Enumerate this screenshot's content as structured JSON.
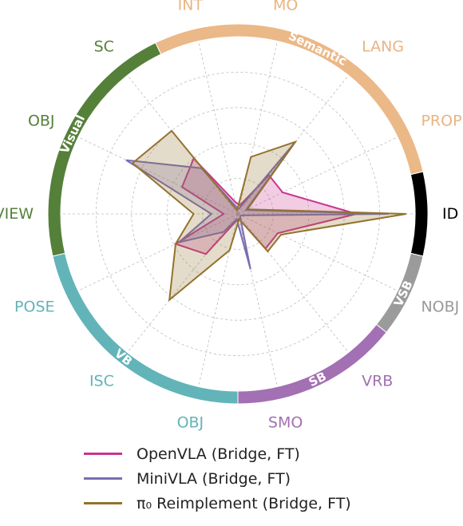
{
  "chart_data": {
    "type": "radar",
    "axes": [
      {
        "label": "ID",
        "color": "#000000"
      },
      {
        "label": "PROP",
        "color": "#E8B583"
      },
      {
        "label": "LANG",
        "color": "#E8B583"
      },
      {
        "label": "MO",
        "color": "#E8B583"
      },
      {
        "label": "INT",
        "color": "#E8B583"
      },
      {
        "label": "SC",
        "color": "#55803A"
      },
      {
        "label": "OBJ",
        "color": "#55803A"
      },
      {
        "label": "VIEW",
        "color": "#55803A"
      },
      {
        "label": "POSE",
        "color": "#62B4B8"
      },
      {
        "label": "ISC",
        "color": "#62B4B8"
      },
      {
        "label": "OBJ",
        "color": "#62B4B8"
      },
      {
        "label": "SMO",
        "color": "#A370B3"
      },
      {
        "label": "VRB",
        "color": "#A370B3"
      },
      {
        "label": "NOBJ",
        "color": "#999999"
      }
    ],
    "groups": [
      {
        "label": "Semantic",
        "color": "#EBB887",
        "axes": [
          "PROP",
          "LANG",
          "MO",
          "INT"
        ]
      },
      {
        "label": "Visual",
        "color": "#55803A",
        "axes": [
          "SC",
          "OBJ",
          "VIEW"
        ]
      },
      {
        "label": "VB",
        "color": "#62B4B8",
        "axes": [
          "POSE",
          "ISC",
          "OBJ"
        ]
      },
      {
        "label": "SB",
        "color": "#A370B3",
        "axes": [
          "SMO",
          "VRB"
        ]
      },
      {
        "label": "VSB",
        "color": "#9B9B9B",
        "axes": [
          "NOBJ"
        ]
      },
      {
        "label": "",
        "color": "#000000",
        "axes": [
          "ID"
        ]
      }
    ],
    "range": [
      0,
      1
    ],
    "grid": true,
    "legend_position": "bottom",
    "series": [
      {
        "name": "OpenVLA (Bridge, FT)",
        "color": "#C9358F",
        "values": [
          0.67,
          0.28,
          0.28,
          0.05,
          0.07,
          0.4,
          0.35,
          0.08,
          0.39,
          0.29,
          0.04,
          0.03,
          0.25,
          0.25
        ]
      },
      {
        "name": "MiniVLA (Bridge, FT)",
        "color": "#7B6CB3",
        "values": [
          0.85,
          0.05,
          0.52,
          0.03,
          0.04,
          0.33,
          0.7,
          0.15,
          0.37,
          0.13,
          0.03,
          0.32,
          0.02,
          0.02
        ]
      },
      {
        "name": "π₀ Reimplement (Bridge, FT)",
        "color": "#94722D",
        "values": [
          0.95,
          0.06,
          0.52,
          0.33,
          0.02,
          0.6,
          0.66,
          0.25,
          0.39,
          0.62,
          0.21,
          0.03,
          0.27,
          0.27
        ]
      }
    ]
  }
}
